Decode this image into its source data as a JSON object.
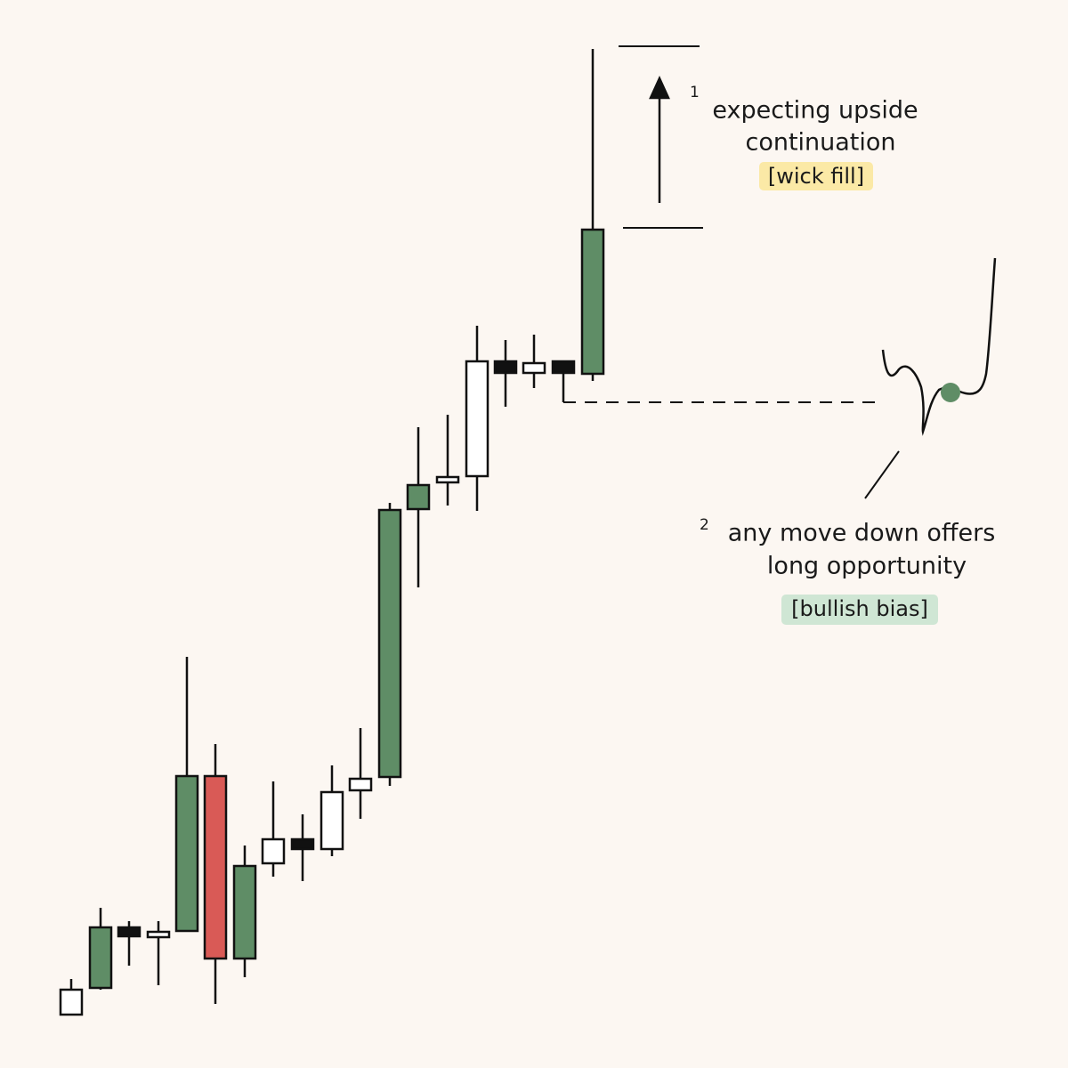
{
  "annotation_1": {
    "number": "1",
    "lines": [
      "expecting upside",
      "continuation"
    ],
    "tag": "[wick fill]"
  },
  "annotation_2": {
    "number": "2",
    "lines": [
      "any move down offers",
      "long opportunity"
    ],
    "tag": "[bullish bias]"
  }
}
